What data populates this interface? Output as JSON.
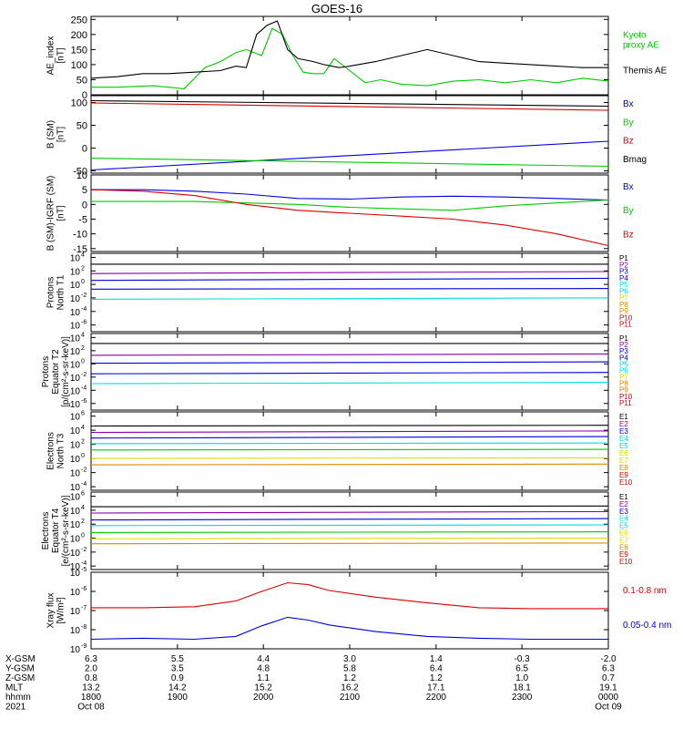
{
  "title": "GOES-16",
  "colors": {
    "black": "#000000",
    "red": "#dd0000",
    "green": "#00cc00",
    "blue": "#0000dd",
    "cyan": "#00dddd",
    "purple": "#8800aa",
    "orange": "#dd8800",
    "yellow": "#dddd00",
    "darkred": "#aa0000"
  },
  "chart_data": [
    {
      "type": "line",
      "id": "ae",
      "ylabel": [
        "AE_index",
        "[nT]"
      ],
      "yticks": [
        0,
        50,
        100,
        150,
        200,
        250
      ],
      "ylim": [
        0,
        260
      ],
      "series": [
        {
          "name": "Kyoto proxy AE",
          "label_lines": [
            "Kyoto",
            "proxy AE"
          ],
          "color": "green",
          "x": [
            0,
            0.05,
            0.12,
            0.18,
            0.22,
            0.25,
            0.28,
            0.3,
            0.33,
            0.35,
            0.37,
            0.39,
            0.41,
            0.43,
            0.45,
            0.47,
            0.5,
            0.53,
            0.56,
            0.6,
            0.65,
            0.7,
            0.75,
            0.8,
            0.85,
            0.9,
            0.95,
            1.0
          ],
          "y": [
            25,
            25,
            30,
            20,
            90,
            110,
            140,
            150,
            130,
            220,
            200,
            130,
            75,
            70,
            70,
            120,
            80,
            40,
            50,
            35,
            30,
            45,
            50,
            40,
            50,
            40,
            55,
            45
          ]
        },
        {
          "name": "Themis AE",
          "label_lines": [
            "Themis AE"
          ],
          "color": "black",
          "x": [
            0,
            0.05,
            0.1,
            0.15,
            0.2,
            0.25,
            0.28,
            0.3,
            0.32,
            0.34,
            0.36,
            0.38,
            0.4,
            0.43,
            0.45,
            0.48,
            0.5,
            0.55,
            0.6,
            0.65,
            0.7,
            0.75,
            0.8,
            0.85,
            0.9,
            0.95,
            1.0
          ],
          "y": [
            55,
            60,
            70,
            70,
            75,
            80,
            95,
            90,
            200,
            230,
            245,
            150,
            120,
            110,
            100,
            90,
            95,
            110,
            130,
            150,
            130,
            110,
            105,
            100,
            95,
            90,
            90
          ]
        }
      ]
    },
    {
      "type": "line",
      "id": "bsm",
      "ylabel": [
        "B (SM)",
        "[nT]"
      ],
      "yticks": [
        -50,
        0,
        50,
        100
      ],
      "ylim": [
        -55,
        115
      ],
      "series": [
        {
          "name": "Bx",
          "label_lines": [
            "Bx"
          ],
          "color": "blue",
          "x": [
            0,
            1
          ],
          "y": [
            -48,
            15
          ]
        },
        {
          "name": "By",
          "label_lines": [
            "By"
          ],
          "color": "green",
          "x": [
            0,
            1
          ],
          "y": [
            -22,
            -40
          ]
        },
        {
          "name": "Bz",
          "label_lines": [
            "Bz"
          ],
          "color": "red",
          "x": [
            0,
            1
          ],
          "y": [
            99,
            83
          ]
        },
        {
          "name": "Bmag",
          "label_lines": [
            "Bmag"
          ],
          "color": "black",
          "x": [
            0,
            1
          ],
          "y": [
            104,
            92
          ]
        }
      ]
    },
    {
      "type": "line",
      "id": "bigrf",
      "ylabel": [
        "B (SM)-IGRF (SM)",
        "[nT]"
      ],
      "yticks": [
        -15,
        -10,
        -5,
        0,
        5,
        10
      ],
      "ylim": [
        -16,
        10
      ],
      "series": [
        {
          "name": "Bx",
          "label_lines": [
            "Bx"
          ],
          "color": "blue",
          "x": [
            0,
            0.1,
            0.2,
            0.3,
            0.4,
            0.5,
            0.6,
            0.7,
            0.8,
            0.9,
            1.0
          ],
          "y": [
            5,
            5,
            4.5,
            3.5,
            2,
            1.8,
            2.5,
            2.8,
            2.5,
            2,
            1.5
          ]
        },
        {
          "name": "By",
          "label_lines": [
            "By"
          ],
          "color": "green",
          "x": [
            0,
            0.1,
            0.2,
            0.3,
            0.4,
            0.5,
            0.6,
            0.7,
            0.8,
            0.9,
            1.0
          ],
          "y": [
            1,
            1,
            1,
            0.5,
            0,
            -1,
            -1.5,
            -2,
            -0.5,
            0.5,
            1.5
          ]
        },
        {
          "name": "Bz",
          "label_lines": [
            "Bz"
          ],
          "color": "red",
          "x": [
            0,
            0.1,
            0.2,
            0.3,
            0.4,
            0.5,
            0.6,
            0.7,
            0.8,
            0.9,
            1.0
          ],
          "y": [
            5,
            4.5,
            3,
            0,
            -2,
            -3,
            -4,
            -5,
            -7,
            -10,
            -14
          ]
        }
      ]
    },
    {
      "type": "line",
      "id": "protons-t1",
      "log": true,
      "ylabel": [
        "Protons",
        "North T1"
      ],
      "ylim_exp": [
        -7,
        4.6
      ],
      "ytick_exps": [
        4,
        2,
        0,
        -2,
        -4,
        -6
      ],
      "channel_labels": [
        "P1",
        "P2",
        "P3",
        "P4",
        "P5",
        "P6",
        "P7",
        "P8",
        "P9",
        "P10",
        "P11"
      ],
      "channel_colors": [
        "black",
        "purple",
        "blue",
        "blue",
        "cyan",
        "cyan",
        "yellow",
        "orange",
        "orange",
        "red",
        "red"
      ],
      "series": [
        {
          "name": "P1",
          "color": "black",
          "x": [
            0,
            1
          ],
          "y_exp": [
            3.0,
            3.0
          ]
        },
        {
          "name": "P2",
          "color": "purple",
          "x": [
            0,
            1
          ],
          "y_exp": [
            1.6,
            1.9
          ]
        },
        {
          "name": "P3",
          "color": "blue",
          "x": [
            0,
            1
          ],
          "y_exp": [
            0.6,
            0.9
          ]
        },
        {
          "name": "P4",
          "color": "blue",
          "x": [
            0,
            1
          ],
          "y_exp": [
            -0.7,
            -0.6
          ]
        },
        {
          "name": "P5",
          "color": "cyan",
          "x": [
            0,
            1
          ],
          "y_exp": [
            -2.2,
            -2.0
          ]
        }
      ]
    },
    {
      "type": "line",
      "id": "protons-t2",
      "log": true,
      "ylabel": [
        "Protons",
        "Equator T2",
        "[p/(cm²-s-sr-keV)]"
      ],
      "ylim_exp": [
        -7,
        4.6
      ],
      "ytick_exps": [
        4,
        2,
        0,
        -2,
        -4,
        -6
      ],
      "channel_labels": [
        "P1",
        "P2",
        "P3",
        "P4",
        "P5",
        "P6",
        "P7",
        "P8",
        "P9",
        "P10",
        "P11"
      ],
      "channel_colors": [
        "black",
        "purple",
        "blue",
        "blue",
        "cyan",
        "cyan",
        "yellow",
        "orange",
        "orange",
        "red",
        "red"
      ],
      "series": [
        {
          "name": "P1",
          "color": "black",
          "x": [
            0,
            1
          ],
          "y_exp": [
            3.1,
            3.1
          ]
        },
        {
          "name": "P2",
          "color": "purple",
          "x": [
            0,
            1
          ],
          "y_exp": [
            1.3,
            1.5
          ]
        },
        {
          "name": "P3",
          "color": "blue",
          "x": [
            0,
            1
          ],
          "y_exp": [
            0.1,
            0.3
          ]
        },
        {
          "name": "P4",
          "color": "blue",
          "x": [
            0,
            1
          ],
          "y_exp": [
            -1.5,
            -1.3
          ]
        },
        {
          "name": "P5",
          "color": "cyan",
          "x": [
            0,
            1
          ],
          "y_exp": [
            -3.0,
            -2.8
          ]
        }
      ]
    },
    {
      "type": "line",
      "id": "electrons-t3",
      "log": true,
      "ylabel": [
        "Electrons",
        "North T3"
      ],
      "ylim_exp": [
        -4.5,
        6.6
      ],
      "ytick_exps": [
        6,
        4,
        2,
        0,
        -2,
        -4
      ],
      "channel_labels": [
        "E1",
        "E2",
        "E3",
        "E4",
        "E5",
        "E6",
        "E7",
        "E8",
        "E9",
        "E10"
      ],
      "channel_colors": [
        "black",
        "purple",
        "blue",
        "cyan",
        "cyan",
        "yellow",
        "yellow",
        "orange",
        "red",
        "red"
      ],
      "series": [
        {
          "name": "E1",
          "color": "black",
          "x": [
            0,
            1
          ],
          "y_exp": [
            4.6,
            4.7
          ]
        },
        {
          "name": "E2",
          "color": "purple",
          "x": [
            0,
            1
          ],
          "y_exp": [
            3.7,
            3.9
          ]
        },
        {
          "name": "E3",
          "color": "blue",
          "x": [
            0,
            1
          ],
          "y_exp": [
            2.9,
            3.1
          ]
        },
        {
          "name": "E4",
          "color": "cyan",
          "x": [
            0,
            1
          ],
          "y_exp": [
            2.1,
            2.2
          ]
        },
        {
          "name": "E5",
          "color": "green",
          "x": [
            0,
            1
          ],
          "y_exp": [
            1.2,
            1.3
          ]
        },
        {
          "name": "E6",
          "color": "yellow",
          "x": [
            0,
            1
          ],
          "y_exp": [
            0.0,
            0.1
          ]
        },
        {
          "name": "E7",
          "color": "orange",
          "x": [
            0,
            1
          ],
          "y_exp": [
            -0.9,
            -0.8
          ]
        }
      ]
    },
    {
      "type": "line",
      "id": "electrons-t4",
      "log": true,
      "ylabel": [
        "Electrons",
        "Equator T4",
        "[e/(cm²-s-sr-keV)]"
      ],
      "ylim_exp": [
        -4.5,
        6.6
      ],
      "ytick_exps": [
        6,
        4,
        2,
        0,
        -2,
        -4
      ],
      "channel_labels": [
        "E1",
        "E2",
        "E3",
        "E4",
        "E5",
        "E6",
        "E7",
        "E8",
        "E9",
        "E10"
      ],
      "channel_colors": [
        "black",
        "purple",
        "blue",
        "cyan",
        "cyan",
        "yellow",
        "yellow",
        "orange",
        "red",
        "red"
      ],
      "series": [
        {
          "name": "E1",
          "color": "black",
          "x": [
            0,
            1
          ],
          "y_exp": [
            4.5,
            4.6
          ]
        },
        {
          "name": "E2",
          "color": "purple",
          "x": [
            0,
            1
          ],
          "y_exp": [
            3.6,
            3.8
          ]
        },
        {
          "name": "E3",
          "color": "blue",
          "x": [
            0,
            1
          ],
          "y_exp": [
            2.6,
            2.8
          ]
        },
        {
          "name": "E4",
          "color": "cyan",
          "x": [
            0,
            1
          ],
          "y_exp": [
            1.8,
            1.9
          ]
        },
        {
          "name": "E5",
          "color": "green",
          "x": [
            0,
            1
          ],
          "y_exp": [
            0.8,
            0.9
          ]
        },
        {
          "name": "E6",
          "color": "yellow",
          "x": [
            0,
            1
          ],
          "y_exp": [
            -0.1,
            0.0
          ]
        },
        {
          "name": "E7",
          "color": "orange",
          "x": [
            0,
            1
          ],
          "y_exp": [
            -0.8,
            -0.7
          ]
        }
      ]
    },
    {
      "type": "line",
      "id": "xray",
      "log": true,
      "ylabel": [
        "Xray flux",
        "[W/m²]"
      ],
      "ylim_exp": [
        -9,
        -5
      ],
      "ytick_exps": [
        -5,
        -6,
        -7,
        -8,
        -9
      ],
      "series": [
        {
          "name": "0.1-0.8 nm",
          "label_lines": [
            "0.1-0.8 nm"
          ],
          "color": "red",
          "x": [
            0,
            0.1,
            0.2,
            0.28,
            0.33,
            0.38,
            0.42,
            0.46,
            0.55,
            0.65,
            0.75,
            0.85,
            1.0
          ],
          "y_exp": [
            -6.85,
            -6.85,
            -6.8,
            -6.5,
            -6.0,
            -5.55,
            -5.65,
            -5.95,
            -6.3,
            -6.6,
            -6.85,
            -6.9,
            -6.9
          ]
        },
        {
          "name": "0.05-0.4 nm",
          "label_lines": [
            "0.05-0.4 nm"
          ],
          "color": "blue",
          "x": [
            0,
            0.1,
            0.2,
            0.28,
            0.33,
            0.38,
            0.42,
            0.46,
            0.55,
            0.65,
            0.75,
            0.85,
            1.0
          ],
          "y_exp": [
            -8.5,
            -8.45,
            -8.5,
            -8.35,
            -7.8,
            -7.35,
            -7.5,
            -7.75,
            -8.1,
            -8.35,
            -8.45,
            -8.5,
            -8.5
          ]
        }
      ]
    }
  ],
  "x_axis": {
    "row_labels": [
      "X-GSM",
      "Y-GSM",
      "Z-GSM",
      "MLT",
      "hhmm",
      "2021"
    ],
    "columns": [
      {
        "x": 0.0,
        "values": [
          "6.3",
          "2.0",
          "0.8",
          "13.2",
          "1800",
          "Oct 08"
        ]
      },
      {
        "x": 0.167,
        "values": [
          "5.5",
          "3.5",
          "0.9",
          "14.2",
          "1900",
          ""
        ]
      },
      {
        "x": 0.333,
        "values": [
          "4.4",
          "4.8",
          "1.1",
          "15.2",
          "2000",
          ""
        ]
      },
      {
        "x": 0.5,
        "values": [
          "3.0",
          "5.8",
          "1.2",
          "16.2",
          "2100",
          ""
        ]
      },
      {
        "x": 0.667,
        "values": [
          "1.4",
          "6.4",
          "1.2",
          "17.1",
          "2200",
          ""
        ]
      },
      {
        "x": 0.833,
        "values": [
          "-0.3",
          "6.5",
          "1.0",
          "18.1",
          "2300",
          ""
        ]
      },
      {
        "x": 1.0,
        "values": [
          "-2.0",
          "6.3",
          "0.7",
          "19.1",
          "0000",
          "Oct 09"
        ]
      }
    ]
  }
}
